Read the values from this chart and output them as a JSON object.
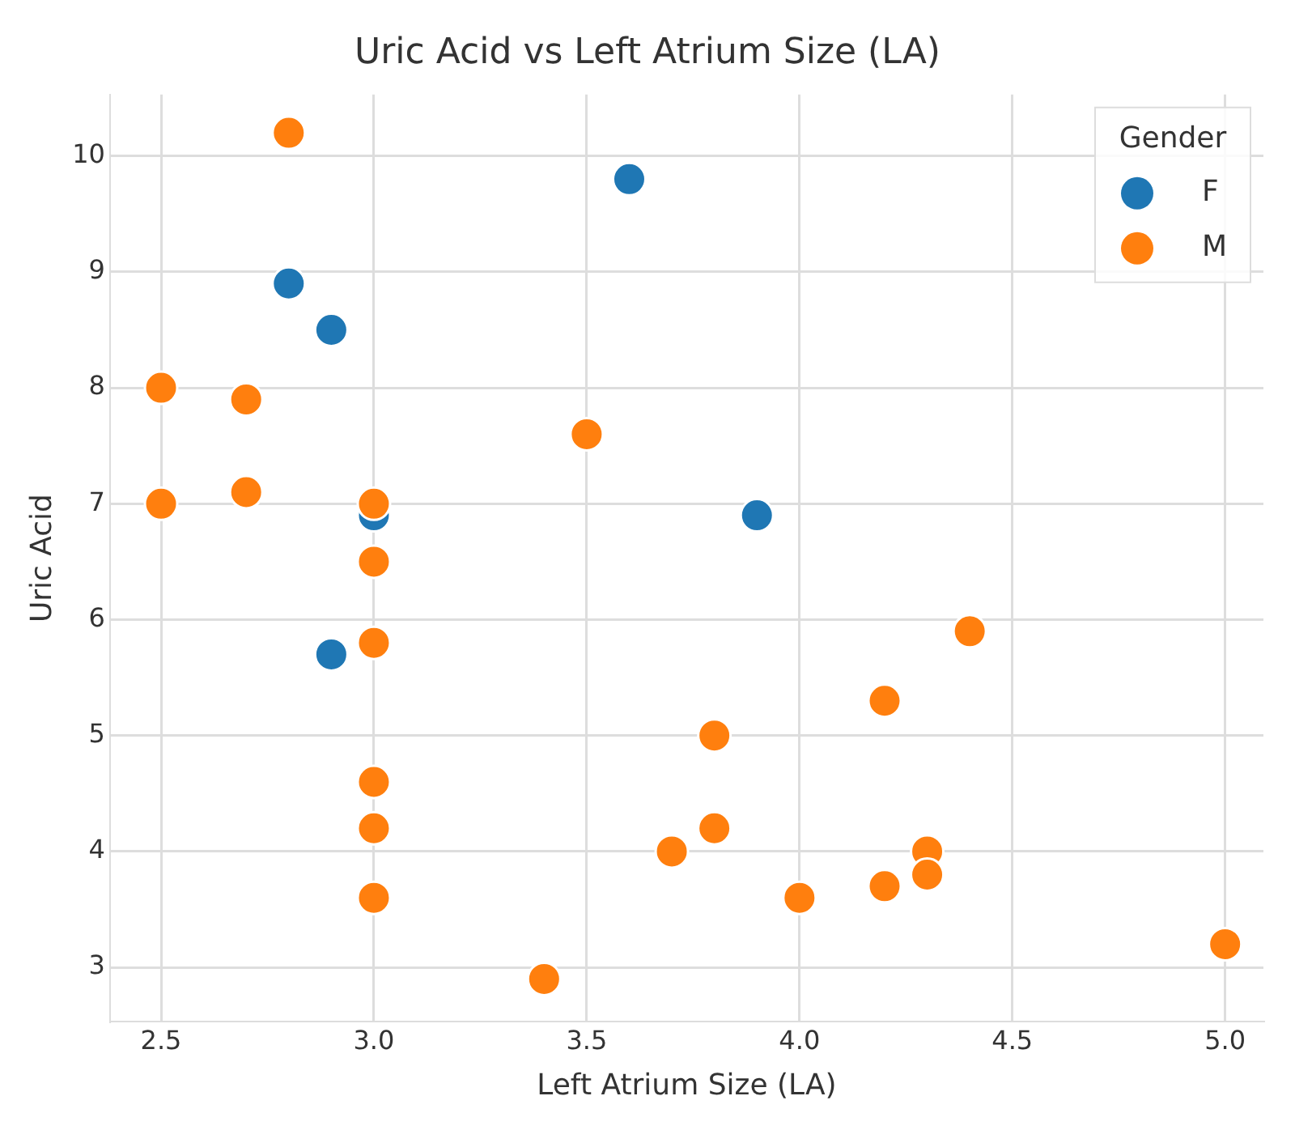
{
  "chart_data": {
    "type": "scatter",
    "title": "Uric Acid vs Left Atrium Size (LA)",
    "xlabel": "Left Atrium Size (LA)",
    "ylabel": "Uric Acid",
    "legend_title": "Gender",
    "legend": "top right",
    "grid": true,
    "marker": "circle",
    "xlim": [
      2.38,
      5.09
    ],
    "ylim": [
      2.53,
      10.53
    ],
    "xticks": [
      {
        "value": 2.5,
        "label": "2.5"
      },
      {
        "value": 3,
        "label": "3.0"
      },
      {
        "value": 3.5,
        "label": "3.5"
      },
      {
        "value": 4,
        "label": "4.0"
      },
      {
        "value": 4.5,
        "label": "4.5"
      },
      {
        "value": 5,
        "label": "5.0"
      }
    ],
    "yticks": [
      3,
      4,
      5,
      6,
      7,
      8,
      9,
      10
    ],
    "series": [
      {
        "name": "F",
        "color": "#1f77b4",
        "x": [
          2.8,
          2.9,
          3.6,
          3.0,
          3.9,
          2.9
        ],
        "values": [
          8.9,
          8.5,
          9.8,
          6.9,
          6.9,
          5.7
        ]
      },
      {
        "name": "M",
        "color": "#ff7f0e",
        "x": [
          2.8,
          2.5,
          2.7,
          2.5,
          2.7,
          3.0,
          3.5,
          3.0,
          3.0,
          4.4,
          4.2,
          3.8,
          3.0,
          3.0,
          3.8,
          3.7,
          4.3,
          4.3,
          4.2,
          4.0,
          3.0,
          3.4,
          5.0
        ],
        "values": [
          10.2,
          8.0,
          7.9,
          7.0,
          7.1,
          7.0,
          7.6,
          6.5,
          5.8,
          5.9,
          5.3,
          5.0,
          4.6,
          4.2,
          4.2,
          4.0,
          4.0,
          3.8,
          3.7,
          3.6,
          3.6,
          2.9,
          3.2
        ]
      }
    ]
  }
}
